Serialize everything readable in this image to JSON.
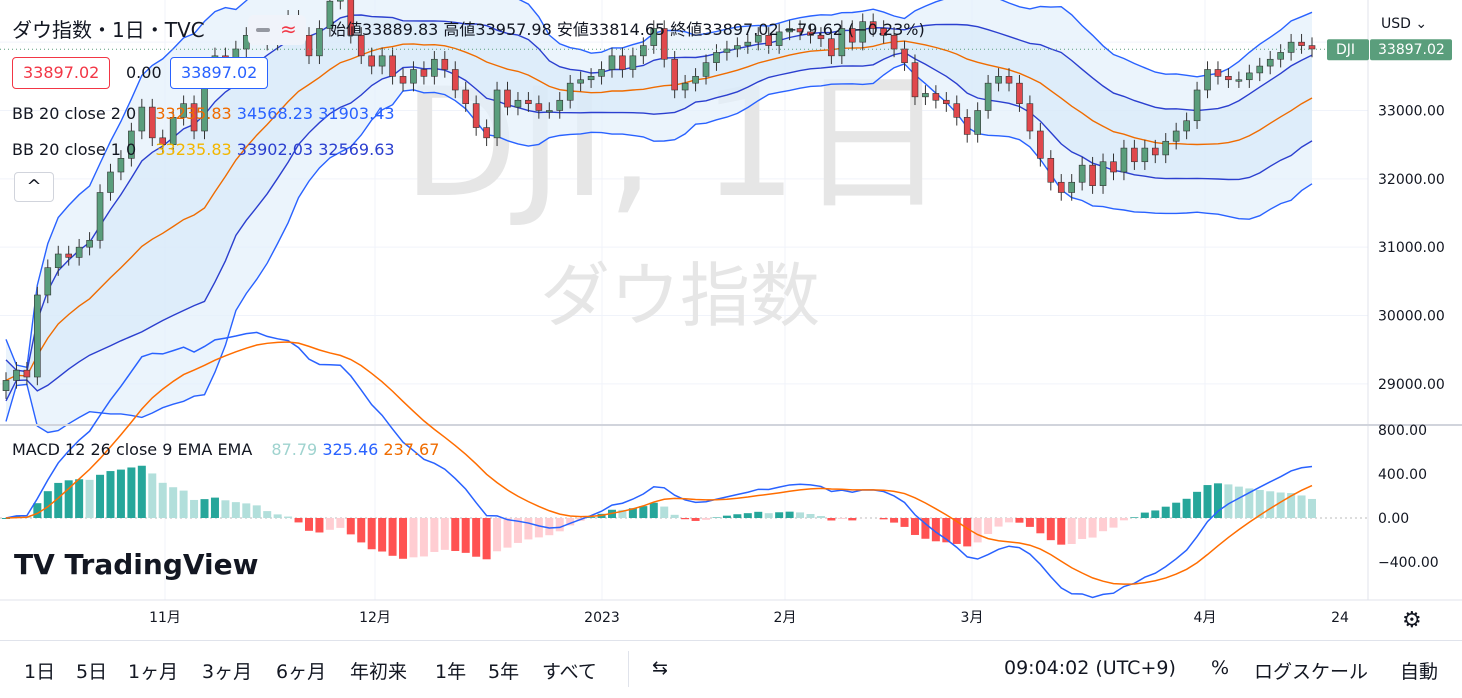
{
  "header": {
    "symbol_title": "ダウ指数・1日・TVC",
    "ohlc": "始値33889.83 高値33957.98 安値33814.65 終値33897.02 −79.62 (−0.23%)"
  },
  "chips": {
    "sell": "33897.02",
    "spread": "0.00",
    "buy": "33897.02"
  },
  "indicators": {
    "bb1": {
      "label": "BB 20 close 2 0",
      "basis": "33235.83",
      "upper": "34568.23",
      "lower": "31903.43"
    },
    "bb2": {
      "label": "BB 20 close 1 0",
      "basis": "33235.83",
      "upper": "33902.03",
      "lower": "32569.63"
    },
    "macd": {
      "label": "MACD 12 26 close 9 EMA EMA",
      "hist": "87.79",
      "macd": "325.46",
      "signal": "237.67"
    }
  },
  "watermark": {
    "symbol": "DJI, 1日",
    "name": "ダウ指数"
  },
  "price_axis": {
    "currency": "USD",
    "last_tag_symbol": "DJI",
    "last_price": "33897.02",
    "ticks": [
      "33000.00",
      "32000.00",
      "31000.00",
      "30000.00",
      "29000.00"
    ]
  },
  "macd_axis": {
    "ticks": [
      "800.00",
      "400.00",
      "0.00",
      "−400.00"
    ]
  },
  "time_axis": {
    "labels": [
      "11月",
      "12月",
      "2023",
      "2月",
      "3月",
      "4月",
      "24"
    ]
  },
  "brand": "TradingView",
  "toolbar": {
    "timeframes": [
      "1日",
      "5日",
      "1ヶ月",
      "3ヶ月",
      "6ヶ月",
      "年初来",
      "1年",
      "5年",
      "すべて"
    ],
    "clock": "09:04:02 (UTC+9)",
    "percent": "%",
    "log": "ログスケール",
    "auto": "自動"
  },
  "colors": {
    "up": "#5a9e7c",
    "down": "#e0484c",
    "basis": "#ef6c00",
    "band": "#2b3fcf",
    "macd": "#2962ff",
    "signal": "#ff6d00",
    "hist_pos": "#26a69a",
    "hist_neg": "#ff5252"
  },
  "chart_data": {
    "type": "candlestick",
    "ylim": [
      28500,
      34500
    ],
    "series": [
      {
        "name": "DJI",
        "close": [
          29050,
          29200,
          29100,
          30300,
          30700,
          30900,
          30850,
          31000,
          31100,
          31800,
          32100,
          32300,
          32700,
          33050,
          32600,
          32500,
          32900,
          33100,
          32700,
          33500,
          33800,
          33700,
          33900,
          34100,
          34200,
          34000,
          34200,
          34350,
          34100,
          33800,
          34200,
          34600,
          34700,
          34100,
          33800,
          33650,
          33800,
          33500,
          33400,
          33600,
          33500,
          33750,
          33600,
          33300,
          33100,
          32750,
          32600,
          33300,
          33050,
          33150,
          33100,
          33000,
          33000,
          33150,
          33400,
          33450,
          33500,
          33600,
          33800,
          33600,
          33800,
          33950,
          34200,
          33750,
          33300,
          33400,
          33500,
          33700,
          33850,
          33900,
          33950,
          34000,
          34100,
          33950,
          34150,
          34200,
          34150,
          34100,
          34050,
          33800,
          34200,
          34000,
          34300,
          34200,
          34100,
          33900,
          33700,
          33200,
          33250,
          33150,
          33100,
          32900,
          32650,
          33000,
          33400,
          33500,
          33400,
          33100,
          32700,
          32300,
          31950,
          31800,
          31950,
          32200,
          31900,
          32250,
          32100,
          32450,
          32250,
          32450,
          32350,
          32550,
          32700,
          32850,
          33300,
          33600,
          33500,
          33450,
          33450,
          33550,
          33650,
          33750,
          33850,
          34000,
          33950,
          33900
        ]
      }
    ]
  }
}
